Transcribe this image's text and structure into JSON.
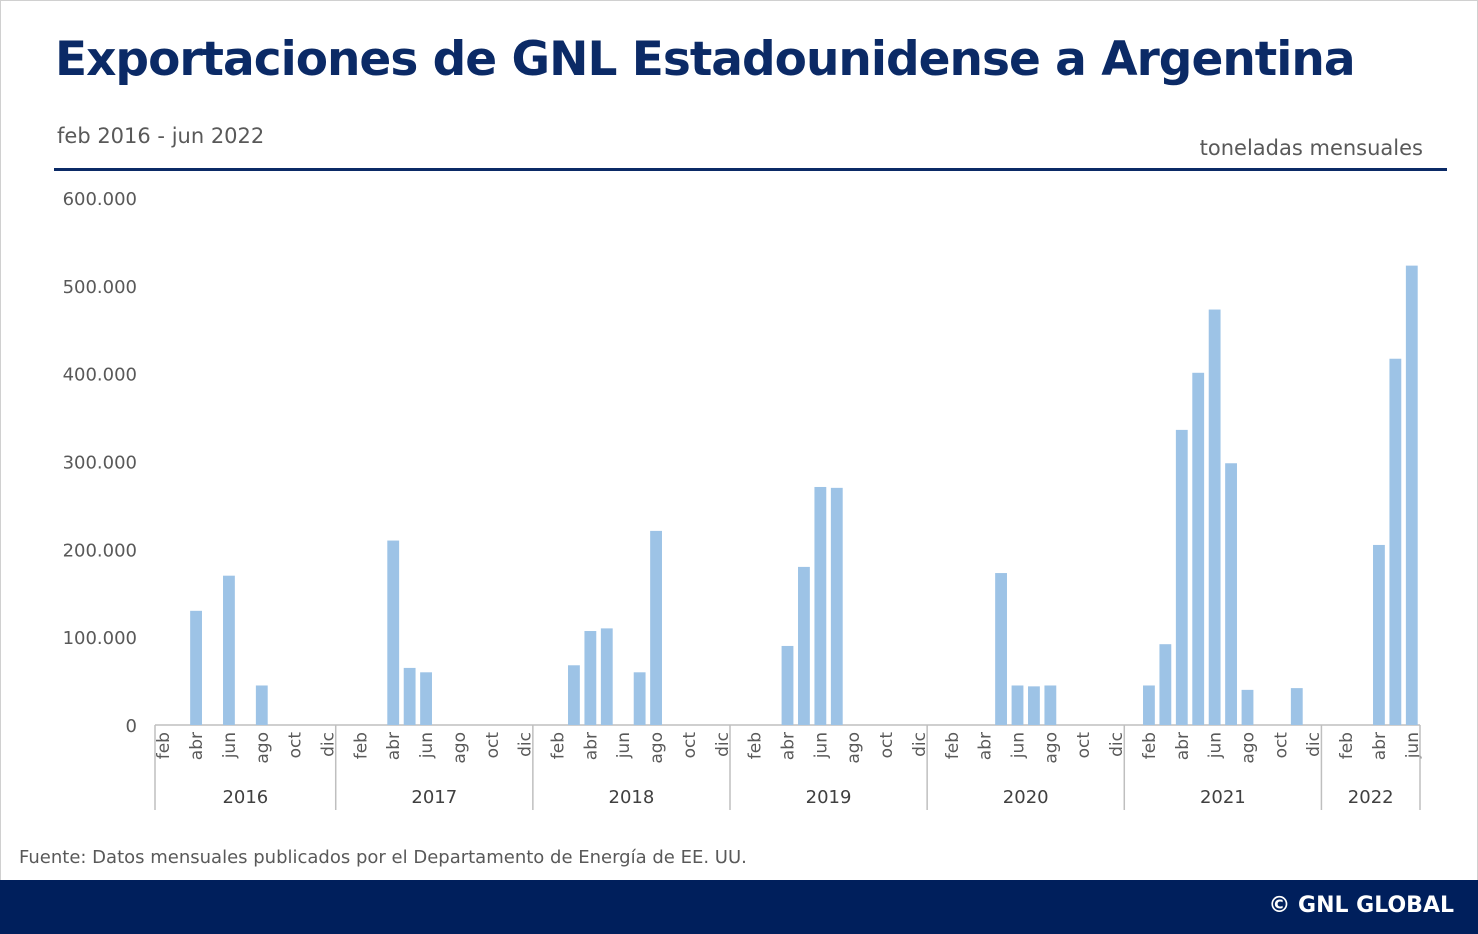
{
  "title": "Exportaciones de GNL Estadounidense a Argentina",
  "subtitle": "feb 2016 - jun 2022",
  "unit_label": "toneladas mensuales",
  "source": "Fuente: Datos mensuales publicados por el Departamento de Energía de EE. UU.",
  "footer": "© GNL GLOBAL",
  "colors": {
    "bar": "#9dc3e6",
    "title": "#0b2a66",
    "footer": "#001f5c"
  },
  "chart_data": {
    "type": "bar",
    "ylim": [
      0,
      600000
    ],
    "yticks": [
      "0",
      "100.000",
      "200.000",
      "300.000",
      "400.000",
      "500.000",
      "600.000"
    ],
    "ytick_values": [
      0,
      100000,
      200000,
      300000,
      400000,
      500000,
      600000
    ],
    "grid": false,
    "years": [
      {
        "label": "2016",
        "months": [
          "feb",
          "mar",
          "abr",
          "may",
          "jun",
          "jul",
          "ago",
          "sep",
          "oct",
          "nov",
          "dic"
        ],
        "values": [
          0,
          0,
          130000,
          0,
          170000,
          0,
          45000,
          0,
          0,
          0,
          0
        ]
      },
      {
        "label": "2017",
        "months": [
          "ene",
          "feb",
          "mar",
          "abr",
          "may",
          "jun",
          "jul",
          "ago",
          "sep",
          "oct",
          "nov",
          "dic"
        ],
        "values": [
          0,
          0,
          0,
          210000,
          65000,
          60000,
          0,
          0,
          0,
          0,
          0,
          0
        ]
      },
      {
        "label": "2018",
        "months": [
          "ene",
          "feb",
          "mar",
          "abr",
          "may",
          "jun",
          "jul",
          "ago",
          "sep",
          "oct",
          "nov",
          "dic"
        ],
        "values": [
          0,
          0,
          68000,
          107000,
          110000,
          0,
          60000,
          221000,
          0,
          0,
          0,
          0
        ]
      },
      {
        "label": "2019",
        "months": [
          "ene",
          "feb",
          "mar",
          "abr",
          "may",
          "jun",
          "jul",
          "ago",
          "sep",
          "oct",
          "nov",
          "dic"
        ],
        "values": [
          0,
          0,
          0,
          90000,
          180000,
          271000,
          270000,
          0,
          0,
          0,
          0,
          0
        ]
      },
      {
        "label": "2020",
        "months": [
          "ene",
          "feb",
          "mar",
          "abr",
          "may",
          "jun",
          "jul",
          "ago",
          "sep",
          "oct",
          "nov",
          "dic"
        ],
        "values": [
          0,
          0,
          0,
          0,
          173000,
          45000,
          44000,
          45000,
          0,
          0,
          0,
          0
        ]
      },
      {
        "label": "2021",
        "months": [
          "ene",
          "feb",
          "mar",
          "abr",
          "may",
          "jun",
          "jul",
          "ago",
          "sep",
          "oct",
          "nov",
          "dic"
        ],
        "values": [
          0,
          45000,
          92000,
          336000,
          401000,
          473000,
          298000,
          40000,
          0,
          0,
          42000,
          0
        ]
      },
      {
        "label": "2022",
        "months": [
          "ene",
          "feb",
          "mar",
          "abr",
          "may",
          "jun"
        ],
        "values": [
          0,
          0,
          0,
          205000,
          417000,
          523000
        ]
      }
    ],
    "shown_tick_months": [
      "feb",
      "abr",
      "jun",
      "ago",
      "oct",
      "dic"
    ]
  }
}
